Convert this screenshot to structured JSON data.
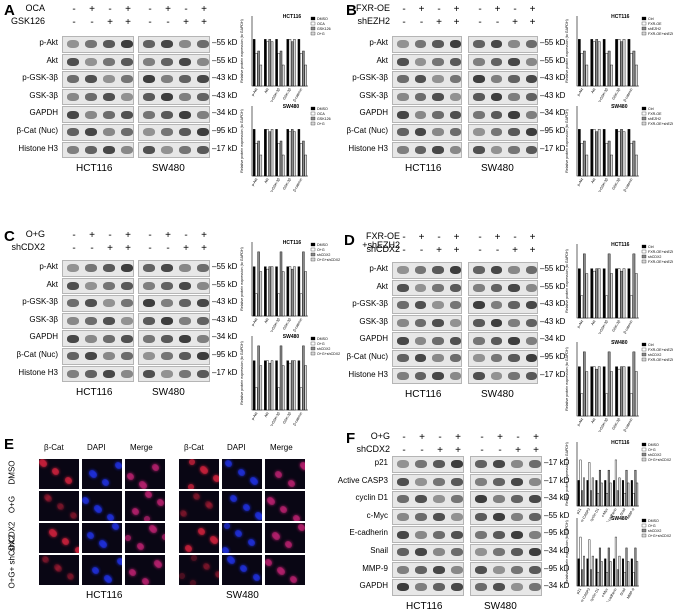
{
  "panels": {
    "A": {
      "letter": "A",
      "conditions": [
        "OCA",
        "GSK126"
      ],
      "signs": [
        [
          "-",
          "+",
          "-",
          "+"
        ],
        [
          "-",
          "-",
          "+",
          "+"
        ]
      ],
      "rows": [
        "p-Akt",
        "Akt",
        "p-GSK-3β",
        "GSK-3β",
        "GAPDH",
        "β-Cat (Nuc)",
        "Histone H3"
      ],
      "sizes": [
        "55 kD",
        "55 kD",
        "43 kD",
        "43 kD",
        "34 kD",
        "95 kD",
        "17 kD"
      ],
      "cells": [
        "HCT116",
        "SW480"
      ]
    },
    "B": {
      "letter": "B",
      "conditions": [
        "FXR-OE",
        "shEZH2"
      ],
      "signs": [
        [
          "-",
          "+",
          "-",
          "+"
        ],
        [
          "-",
          "-",
          "+",
          "+"
        ]
      ],
      "rows": [
        "p-Akt",
        "Akt",
        "p-GSK-3β",
        "GSK-3β",
        "GAPDH",
        "β-Cat (Nuc)",
        "Histone H3"
      ],
      "sizes": [
        "55 kD",
        "55 kD",
        "43 kD",
        "43 kD",
        "34 kD",
        "95 kD",
        "17 kD"
      ],
      "cells": [
        "HCT116",
        "SW480"
      ]
    },
    "C": {
      "letter": "C",
      "conditions": [
        "O+G",
        "shCDX2"
      ],
      "signs": [
        [
          "-",
          "+",
          "-",
          "+"
        ],
        [
          "-",
          "-",
          "+",
          "+"
        ]
      ],
      "rows": [
        "p-Akt",
        "Akt",
        "p-GSK-3β",
        "GSK-3β",
        "GAPDH",
        "β-Cat (Nuc)",
        "Histone H3"
      ],
      "sizes": [
        "55 kD",
        "55 kD",
        "43 kD",
        "43 kD",
        "34 kD",
        "95 kD",
        "17 kD"
      ],
      "cells": [
        "HCT116",
        "SW480"
      ]
    },
    "D": {
      "letter": "D",
      "conditions": [
        "FXR-OE +shEZH2",
        "shCDX2"
      ],
      "signs": [
        [
          "-",
          "+",
          "-",
          "+"
        ],
        [
          "-",
          "-",
          "+",
          "+"
        ]
      ],
      "rows": [
        "p-Akt",
        "Akt",
        "p-GSK-3β",
        "GSK-3β",
        "GAPDH",
        "β-Cat (Nuc)",
        "Histone H3"
      ],
      "sizes": [
        "55 kD",
        "55 kD",
        "43 kD",
        "43 kD",
        "34 kD",
        "95 kD",
        "17 kD"
      ],
      "cells": [
        "HCT116",
        "SW480"
      ]
    },
    "E": {
      "letter": "E",
      "cols": [
        "β-Cat",
        "DAPI",
        "Merge",
        "β-Cat",
        "DAPI",
        "Merge"
      ],
      "row_labels": [
        "DMSO",
        "O+G",
        "shCDX2",
        "O+G+ shCDX2"
      ],
      "cells": [
        "HCT116",
        "SW480"
      ]
    },
    "F": {
      "letter": "F",
      "conditions": [
        "O+G",
        "shCDX2"
      ],
      "signs": [
        [
          "-",
          "+",
          "-",
          "+"
        ],
        [
          "-",
          "-",
          "+",
          "+"
        ]
      ],
      "rows": [
        "p21",
        "Active CASP3",
        "cyclin D1",
        "c-Myc",
        "E-cadherin",
        "Snail",
        "MMP-9",
        "GAPDH"
      ],
      "sizes": [
        "17 kD",
        "17 kD",
        "34 kD",
        "55 kD",
        "95 kD",
        "34 kD",
        "95 kD",
        "34 kD"
      ],
      "cells": [
        "HCT116",
        "SW480"
      ]
    }
  },
  "charts": {
    "A": {
      "legend": [
        "DMSO",
        "OCA",
        "GSK126",
        "O+G"
      ],
      "titles": [
        "HCT116",
        "SW480"
      ],
      "ylabel": "Relative protein expression (to GAPDH)",
      "categories": [
        "p-Akt",
        "Akt",
        "p-GSK-3β",
        "GSK-3β",
        "Nuc β-catenin"
      ]
    },
    "B": {
      "legend": [
        "Ctrl",
        "FXR-OE",
        "shEZH2",
        "FXR-OE+shEZH2"
      ],
      "titles": [
        "HCT116",
        "SW480"
      ],
      "ylabel": "Relative protein expression (to GAPDH)",
      "categories": [
        "p-Akt",
        "Akt",
        "p-GSK-3β",
        "GSK-3β",
        "Nuc β-catenin"
      ]
    },
    "C": {
      "legend": [
        "DMSO",
        "O+G",
        "shCDX2",
        "O+G+shCDX2"
      ],
      "titles": [
        "HCT116",
        "SW480"
      ],
      "ylabel": "Relative protein expression (to GAPDH)",
      "categories": [
        "p-Akt",
        "Akt",
        "p-GSK-3β",
        "GSK-3β",
        "Nuc β-catenin"
      ]
    },
    "D": {
      "legend": [
        "Ctrl",
        "FXR-OE+shEZH2",
        "shCDX2",
        "FXR-OE+shEZH2 +shCDX2"
      ],
      "titles": [
        "HCT116",
        "SW480"
      ],
      "ylabel": "Relative protein expression (to GAPDH)",
      "categories": [
        "p-Akt",
        "Akt",
        "p-GSK-3β",
        "GSK-3β",
        "Nuc β-catenin"
      ]
    },
    "F": {
      "legend": [
        "DMSO",
        "O+G",
        "shCDX2",
        "O+G+shCDX2"
      ],
      "titles": [
        "HCT116",
        "SW480"
      ],
      "ylabel": "Relative protein expression (to GAPDH)",
      "categories": [
        "p21",
        "Active CASP3",
        "cyclin D1",
        "c-Myc",
        "E-cadherin",
        "Snail",
        "MMP-9"
      ]
    }
  },
  "chart_data": [
    {
      "type": "bar",
      "panel": "A",
      "title": "HCT116",
      "categories": [
        "p-Akt",
        "Akt",
        "p-GSK-3β",
        "GSK-3β",
        "Nuc β-catenin"
      ],
      "series": [
        {
          "name": "DMSO",
          "values": [
            1.0,
            1.0,
            1.0,
            1.0,
            1.0
          ]
        },
        {
          "name": "OCA",
          "values": [
            0.7,
            0.95,
            0.7,
            1.0,
            0.7
          ]
        },
        {
          "name": "GSK126",
          "values": [
            0.75,
            1.0,
            0.75,
            0.95,
            0.75
          ]
        },
        {
          "name": "O+G",
          "values": [
            0.45,
            0.95,
            0.45,
            1.0,
            0.45
          ]
        }
      ],
      "ylim": [
        0,
        1.5
      ]
    },
    {
      "type": "bar",
      "panel": "A",
      "title": "SW480",
      "categories": [
        "p-Akt",
        "Akt",
        "p-GSK-3β",
        "GSK-3β",
        "Nuc β-catenin"
      ],
      "series": [
        {
          "name": "DMSO",
          "values": [
            1.0,
            1.0,
            1.0,
            1.0,
            1.0
          ]
        },
        {
          "name": "OCA",
          "values": [
            0.7,
            1.0,
            0.7,
            0.95,
            0.7
          ]
        },
        {
          "name": "GSK126",
          "values": [
            0.75,
            0.95,
            0.75,
            1.0,
            0.75
          ]
        },
        {
          "name": "O+G",
          "values": [
            0.45,
            1.0,
            0.45,
            0.95,
            0.45
          ]
        }
      ],
      "ylim": [
        0,
        1.5
      ]
    },
    {
      "type": "bar",
      "panel": "B",
      "title": "HCT116",
      "categories": [
        "p-Akt",
        "Akt",
        "p-GSK-3β",
        "GSK-3β",
        "Nuc β-catenin"
      ],
      "series": [
        {
          "name": "Ctrl",
          "values": [
            1.0,
            1.0,
            1.0,
            1.0,
            1.0
          ]
        },
        {
          "name": "FXR-OE",
          "values": [
            0.7,
            0.95,
            0.7,
            1.0,
            0.7
          ]
        },
        {
          "name": "shEZH2",
          "values": [
            0.75,
            1.0,
            0.75,
            0.95,
            0.75
          ]
        },
        {
          "name": "FXR-OE+shEZH2",
          "values": [
            0.45,
            0.95,
            0.45,
            1.0,
            0.45
          ]
        }
      ],
      "ylim": [
        0,
        1.5
      ]
    },
    {
      "type": "bar",
      "panel": "B",
      "title": "SW480",
      "categories": [
        "p-Akt",
        "Akt",
        "p-GSK-3β",
        "GSK-3β",
        "Nuc β-catenin"
      ],
      "series": [
        {
          "name": "Ctrl",
          "values": [
            1.0,
            1.0,
            1.0,
            1.0,
            1.0
          ]
        },
        {
          "name": "FXR-OE",
          "values": [
            0.7,
            1.0,
            0.7,
            0.95,
            0.7
          ]
        },
        {
          "name": "shEZH2",
          "values": [
            0.75,
            0.95,
            0.75,
            1.0,
            0.75
          ]
        },
        {
          "name": "FXR-OE+shEZH2",
          "values": [
            0.45,
            1.0,
            0.45,
            0.95,
            0.45
          ]
        }
      ],
      "ylim": [
        0,
        1.5
      ]
    },
    {
      "type": "bar",
      "panel": "C",
      "title": "HCT116",
      "categories": [
        "p-Akt",
        "Akt",
        "p-GSK-3β",
        "GSK-3β",
        "Nuc β-catenin"
      ],
      "series": [
        {
          "name": "DMSO",
          "values": [
            1.0,
            1.0,
            1.0,
            1.0,
            1.0
          ]
        },
        {
          "name": "O+G",
          "values": [
            0.45,
            0.95,
            0.45,
            1.0,
            0.45
          ]
        },
        {
          "name": "shCDX2",
          "values": [
            1.3,
            1.0,
            1.3,
            0.95,
            1.3
          ]
        },
        {
          "name": "O+G+shCDX2",
          "values": [
            0.9,
            1.0,
            0.9,
            1.0,
            0.9
          ]
        }
      ],
      "ylim": [
        0,
        1.5
      ]
    },
    {
      "type": "bar",
      "panel": "C",
      "title": "SW480",
      "categories": [
        "p-Akt",
        "Akt",
        "p-GSK-3β",
        "GSK-3β",
        "Nuc β-catenin"
      ],
      "series": [
        {
          "name": "DMSO",
          "values": [
            1.0,
            1.0,
            1.0,
            1.0,
            1.0
          ]
        },
        {
          "name": "O+G",
          "values": [
            0.45,
            1.0,
            0.45,
            0.95,
            0.45
          ]
        },
        {
          "name": "shCDX2",
          "values": [
            1.3,
            0.95,
            1.3,
            1.0,
            1.3
          ]
        },
        {
          "name": "O+G+shCDX2",
          "values": [
            0.9,
            1.0,
            0.9,
            1.0,
            0.9
          ]
        }
      ],
      "ylim": [
        0,
        1.5
      ]
    },
    {
      "type": "bar",
      "panel": "D",
      "title": "HCT116",
      "categories": [
        "p-Akt",
        "Akt",
        "p-GSK-3β",
        "GSK-3β",
        "Nuc β-catenin"
      ],
      "series": [
        {
          "name": "Ctrl",
          "values": [
            1.0,
            1.0,
            1.0,
            1.0,
            1.0
          ]
        },
        {
          "name": "FXR-OE+shEZH2",
          "values": [
            0.45,
            0.95,
            0.45,
            1.0,
            0.45
          ]
        },
        {
          "name": "shCDX2",
          "values": [
            1.3,
            1.0,
            1.3,
            0.95,
            1.3
          ]
        },
        {
          "name": "FXR-OE+shEZH2 +shCDX2",
          "values": [
            0.9,
            1.0,
            0.9,
            1.0,
            0.9
          ]
        }
      ],
      "ylim": [
        0,
        1.5
      ]
    },
    {
      "type": "bar",
      "panel": "D",
      "title": "SW480",
      "categories": [
        "p-Akt",
        "Akt",
        "p-GSK-3β",
        "GSK-3β",
        "Nuc β-catenin"
      ],
      "series": [
        {
          "name": "Ctrl",
          "values": [
            1.0,
            1.0,
            1.0,
            1.0,
            1.0
          ]
        },
        {
          "name": "FXR-OE+shEZH2",
          "values": [
            0.45,
            1.0,
            0.45,
            0.95,
            0.45
          ]
        },
        {
          "name": "shCDX2",
          "values": [
            1.3,
            0.95,
            1.3,
            1.0,
            1.3
          ]
        },
        {
          "name": "FXR-OE+shEZH2 +shCDX2",
          "values": [
            0.9,
            1.0,
            0.9,
            1.0,
            0.9
          ]
        }
      ],
      "ylim": [
        0,
        1.5
      ]
    },
    {
      "type": "bar",
      "panel": "F",
      "title": "HCT116",
      "categories": [
        "p21",
        "Active CASP3",
        "cyclin D1",
        "c-Myc",
        "E-cadherin",
        "Snail",
        "MMP-9"
      ],
      "series": [
        {
          "name": "DMSO",
          "values": [
            1.0,
            1.0,
            1.0,
            1.0,
            1.0,
            1.0,
            1.0
          ]
        },
        {
          "name": "O+G",
          "values": [
            1.8,
            1.7,
            0.5,
            0.5,
            1.8,
            0.5,
            0.5
          ]
        },
        {
          "name": "shCDX2",
          "values": [
            0.6,
            0.6,
            1.4,
            1.4,
            0.6,
            1.4,
            1.4
          ]
        },
        {
          "name": "O+G+shCDX2",
          "values": [
            1.1,
            1.1,
            0.9,
            0.9,
            1.1,
            0.9,
            0.9
          ]
        }
      ],
      "ylim": [
        0,
        2.5
      ]
    },
    {
      "type": "bar",
      "panel": "F",
      "title": "SW480",
      "categories": [
        "p21",
        "Active CASP3",
        "cyclin D1",
        "c-Myc",
        "E-cadherin",
        "Snail",
        "MMP-9"
      ],
      "series": [
        {
          "name": "DMSO",
          "values": [
            1.0,
            1.0,
            1.0,
            1.0,
            1.0,
            1.0,
            1.0
          ]
        },
        {
          "name": "O+G",
          "values": [
            1.8,
            1.7,
            0.5,
            0.5,
            1.8,
            0.5,
            0.5
          ]
        },
        {
          "name": "shCDX2",
          "values": [
            0.6,
            0.6,
            1.4,
            1.4,
            0.6,
            1.4,
            1.4
          ]
        },
        {
          "name": "O+G+shCDX2",
          "values": [
            1.1,
            1.1,
            0.9,
            0.9,
            1.1,
            0.9,
            0.9
          ]
        }
      ],
      "ylim": [
        0,
        2.5
      ]
    }
  ],
  "colors": {
    "bar_fills": [
      "#000000",
      "#ffffff",
      "#8a8a8a",
      "#d8d8d8"
    ],
    "merge": "#b1206b",
    "dapi": "#1f2fd6",
    "bcat": "#c2203a"
  }
}
